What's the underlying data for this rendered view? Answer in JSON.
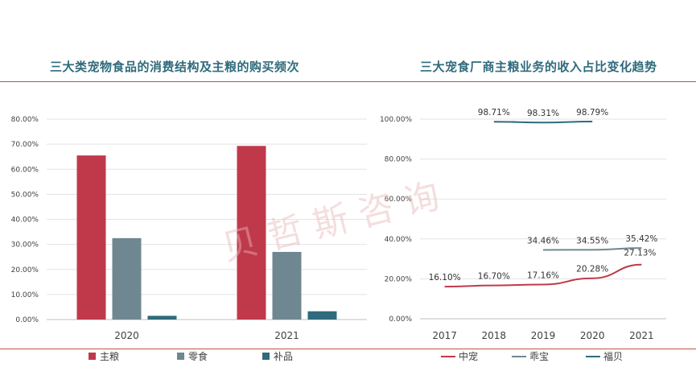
{
  "watermark": "贝 哲 斯 咨 询",
  "chart_data": [
    {
      "type": "bar",
      "title": "三大类宠物食品的消费结构及主粮的购买频次",
      "categories": [
        "2020",
        "2021"
      ],
      "series": [
        {
          "name": "主粮",
          "color": "#c0394b",
          "values": [
            65.5,
            69.3
          ]
        },
        {
          "name": "零食",
          "color": "#6f8790",
          "values": [
            32.5,
            27.0
          ]
        },
        {
          "name": "补品",
          "color": "#2f6b7c",
          "values": [
            1.5,
            3.3
          ]
        }
      ],
      "yticks": [
        "0.00%",
        "10.00%",
        "20.00%",
        "30.00%",
        "40.00%",
        "50.00%",
        "60.00%",
        "70.00%",
        "80.00%"
      ],
      "ylim": [
        0,
        80
      ],
      "grid": true,
      "legend": "bottom"
    },
    {
      "type": "line",
      "title": "三大宠食厂商主粮业务的收入占比变化趋势",
      "x": [
        "2017",
        "2018",
        "2019",
        "2020",
        "2021"
      ],
      "series": [
        {
          "name": "中宠",
          "color": "#c0394b",
          "values": [
            16.1,
            16.7,
            17.16,
            20.28,
            27.13
          ],
          "labels": [
            "16.10%",
            "16.70%",
            "17.16%",
            "20.28%",
            "27.13%"
          ]
        },
        {
          "name": "乖宝",
          "color": "#6f8790",
          "values": [
            null,
            null,
            34.46,
            34.55,
            35.42
          ],
          "labels": [
            "",
            "",
            "34.46%",
            "34.55%",
            "35.42%"
          ]
        },
        {
          "name": "福贝",
          "color": "#2f6b7c",
          "values": [
            null,
            98.71,
            98.31,
            98.79,
            null
          ],
          "labels": [
            "",
            "98.71%",
            "98.31%",
            "98.79%",
            ""
          ]
        }
      ],
      "yticks": [
        "0.00%",
        "20.00%",
        "40.00%",
        "60.00%",
        "80.00%",
        "100.00%"
      ],
      "ylim": [
        0,
        100
      ],
      "grid": true,
      "legend": "bottom"
    }
  ]
}
